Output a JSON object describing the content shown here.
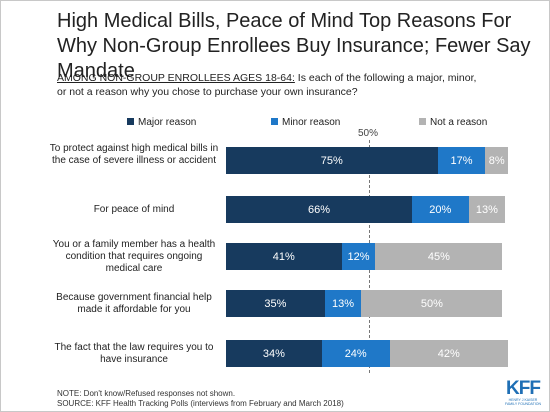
{
  "title": "High Medical Bills, Peace of Mind Top Reasons For Why Non-Group Enrollees Buy Insurance; Fewer Say Mandate",
  "subtitle_prefix": "AMONG NON-GROUP ENROLLEES AGES 18-64:",
  "subtitle_question": " Is each of the following a major, minor, or not a reason why you chose to purchase your own insurance?",
  "reference_label": "50%",
  "notes": {
    "note": "NOTE: Don't know/Refused responses not shown.",
    "source": "SOURCE: KFF Health Tracking Polls (interviews from February and March 2018)"
  },
  "logo": {
    "word": "KFF",
    "sub1": "HENRY J KAISER",
    "sub2": "FAMILY FOUNDATION"
  },
  "colors": {
    "major": "#173a5e",
    "minor": "#1f78c8",
    "not": "#b3b3b3"
  },
  "chart_data": {
    "type": "bar",
    "orientation": "horizontal",
    "stacked": true,
    "categories": [
      "To protect against high medical bills in the case of severe illness or accident",
      "For peace of mind",
      "You or a family member has a health condition that requires ongoing medical care",
      "Because government financial help made it affordable for you",
      "The fact that the law requires you to have insurance"
    ],
    "series": [
      {
        "name": "Major reason",
        "values": [
          75,
          66,
          41,
          35,
          34
        ]
      },
      {
        "name": "Minor reason",
        "values": [
          17,
          20,
          12,
          13,
          24
        ]
      },
      {
        "name": "Not a reason",
        "values": [
          8,
          13,
          45,
          50,
          42
        ]
      }
    ],
    "value_labels": [
      [
        "75%",
        "17%",
        "8%"
      ],
      [
        "66%",
        "20%",
        "13%"
      ],
      [
        "41%",
        "12%",
        "45%"
      ],
      [
        "35%",
        "13%",
        "50%"
      ],
      [
        "34%",
        "24%",
        "42%"
      ]
    ],
    "xlim": [
      0,
      100
    ],
    "reference_line": 50,
    "legend_position": "top",
    "grid": false
  }
}
